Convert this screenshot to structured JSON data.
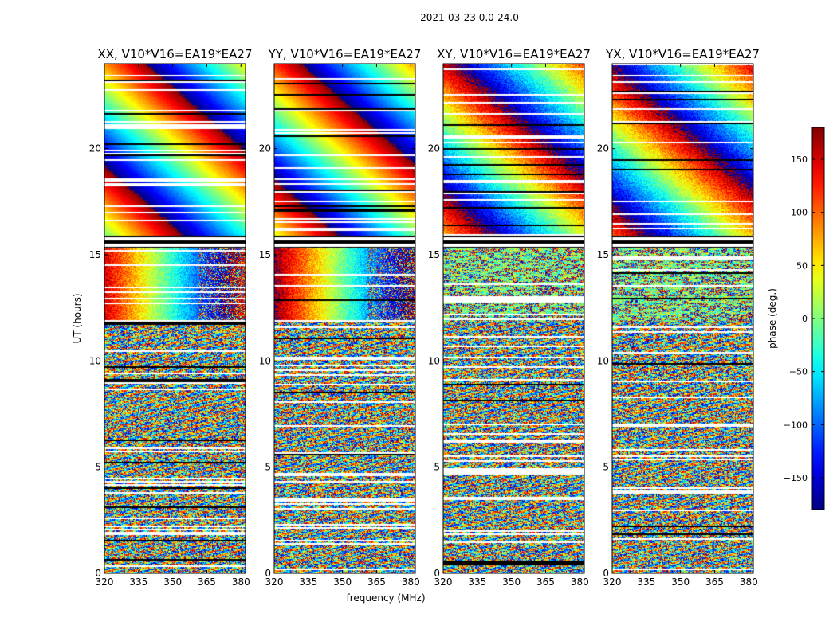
{
  "chart_data": {
    "type": "heatmap",
    "suptitle": "2021-03-23 0.0-24.0",
    "panels": [
      {
        "title": "XX, V10*V16=EA19*EA27",
        "polarization": "XX"
      },
      {
        "title": "YY, V10*V16=EA19*EA27",
        "polarization": "YY"
      },
      {
        "title": "XY, V10*V16=EA19*EA27",
        "polarization": "XY"
      },
      {
        "title": "YX, V10*V16=EA19*EA27",
        "polarization": "YX"
      }
    ],
    "xlabel": "frequency (MHz)",
    "ylabel": "UT (hours)",
    "xlim": [
      320,
      382
    ],
    "ylim": [
      0,
      24
    ],
    "xticks": [
      320,
      335,
      350,
      365,
      380
    ],
    "yticks": [
      0,
      5,
      10,
      15,
      20
    ],
    "colorbar": {
      "label": "phase (deg.)",
      "range": [
        -180,
        180
      ],
      "ticks": [
        150,
        100,
        50,
        0,
        -50,
        -100,
        -150
      ],
      "tick_labels": [
        "150",
        "100",
        "50",
        "0",
        "−50",
        "−100",
        "−150"
      ],
      "colormap": "jet"
    },
    "features": {
      "coherent_fringes_ut_range": [
        15.9,
        24
      ],
      "blank_gap_ut_range": [
        15.35,
        15.9
      ],
      "solar_phase_band_ut_range": [
        11.8,
        15.3
      ],
      "noise_ut_range": [
        0,
        11.8
      ],
      "fringe_drift_deg_per_hour": 55,
      "fringe_drift_deg_per_mhz": 5.2
    }
  }
}
